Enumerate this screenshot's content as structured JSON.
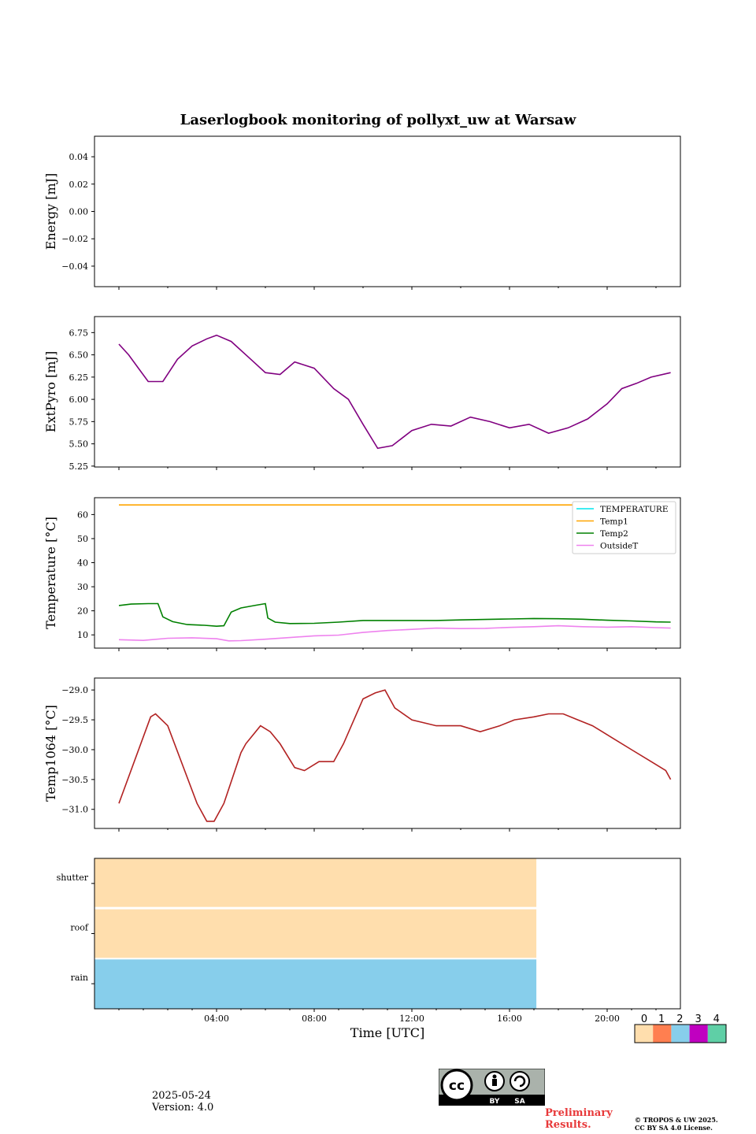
{
  "chart_data": {
    "title": "Laserlogbook monitoring of pollyxt_uw at Warsaw",
    "x_axis": {
      "label": "Time [UTC]",
      "range_hours": [
        -1,
        23
      ],
      "ticks": [
        4,
        8,
        12,
        16,
        20
      ],
      "tick_labels": [
        "04:00",
        "08:00",
        "12:00",
        "16:00",
        "20:00"
      ]
    },
    "panels": [
      {
        "type": "line",
        "ylabel": "Energy [mJ]",
        "ylim": [
          -0.055,
          0.055
        ],
        "yticks": [
          0.04,
          0.02,
          0.0,
          -0.02,
          -0.04
        ],
        "ytick_labels": [
          "0.04",
          "0.02",
          "0.00",
          "−0.02",
          "−0.04"
        ],
        "series": []
      },
      {
        "type": "line",
        "ylabel": "ExtPyro [mJ]",
        "ylim": [
          5.24,
          6.93
        ],
        "yticks": [
          6.75,
          6.5,
          6.25,
          6.0,
          5.75,
          5.5,
          5.25
        ],
        "ytick_labels": [
          "6.75",
          "6.50",
          "6.25",
          "6.00",
          "5.75",
          "5.50",
          "5.25"
        ],
        "series": [
          {
            "color": "#800080",
            "x": [
              0.0,
              0.4,
              0.8,
              1.2,
              1.8,
              2.4,
              3.0,
              3.6,
              4.0,
              4.6,
              5.4,
              6.0,
              6.6,
              7.2,
              8.0,
              8.8,
              9.4,
              10.0,
              10.6,
              11.2,
              12.0,
              12.8,
              13.6,
              14.4,
              15.2,
              16.0,
              16.8,
              17.6,
              18.4,
              19.2,
              20.0,
              20.6,
              21.2,
              21.8,
              22.6
            ],
            "y": [
              6.62,
              6.5,
              6.35,
              6.2,
              6.2,
              6.45,
              6.6,
              6.68,
              6.72,
              6.65,
              6.45,
              6.3,
              6.28,
              6.42,
              6.35,
              6.12,
              6.0,
              5.72,
              5.45,
              5.48,
              5.65,
              5.72,
              5.7,
              5.8,
              5.75,
              5.68,
              5.72,
              5.62,
              5.68,
              5.78,
              5.95,
              6.12,
              6.18,
              6.25,
              6.3
            ]
          }
        ]
      },
      {
        "type": "line",
        "ylabel": "Temperature [°C]",
        "ylim": [
          4.5,
          67
        ],
        "yticks": [
          60,
          50,
          40,
          30,
          20,
          10
        ],
        "ytick_labels": [
          "60",
          "50",
          "40",
          "30",
          "20",
          "10"
        ],
        "legend": {
          "placement": "upper right",
          "entries": [
            "TEMPERATURE",
            "Temp1",
            "Temp2",
            "OutsideT"
          ]
        },
        "series": [
          {
            "name": "TEMPERATURE",
            "color": "#00e5ee",
            "x": [],
            "y": []
          },
          {
            "name": "Temp1",
            "color": "#ffa500",
            "x": [
              0,
              22.6
            ],
            "y": [
              64,
              64
            ]
          },
          {
            "name": "Temp2",
            "color": "#008000",
            "x": [
              0.0,
              0.5,
              1.2,
              1.6,
              1.8,
              2.2,
              2.8,
              3.5,
              4.0,
              4.3,
              4.6,
              5.0,
              5.6,
              6.0,
              6.1,
              6.4,
              7.0,
              8.0,
              9.0,
              10.0,
              11.0,
              12.0,
              13.0,
              14.0,
              15.0,
              16.0,
              17.0,
              18.0,
              19.0,
              20.0,
              21.0,
              22.0,
              22.6
            ],
            "y": [
              22.2,
              22.8,
              23.0,
              23.0,
              17.5,
              15.5,
              14.3,
              14.0,
              13.6,
              13.8,
              19.5,
              21.2,
              22.3,
              23.0,
              17.0,
              15.3,
              14.7,
              14.8,
              15.3,
              16.0,
              16.0,
              16.0,
              16.0,
              16.2,
              16.4,
              16.6,
              16.8,
              16.7,
              16.5,
              16.1,
              15.8,
              15.4,
              15.3
            ]
          },
          {
            "name": "OutsideT",
            "color": "#ee82ee",
            "x": [
              0.0,
              1.0,
              2.0,
              3.0,
              4.0,
              4.5,
              5.0,
              6.0,
              7.0,
              8.0,
              9.0,
              10.0,
              11.0,
              12.0,
              13.0,
              14.0,
              15.0,
              16.0,
              17.0,
              18.0,
              19.0,
              20.0,
              21.0,
              22.0,
              22.6
            ],
            "y": [
              8.0,
              7.7,
              8.6,
              8.8,
              8.4,
              7.5,
              7.6,
              8.2,
              8.9,
              9.6,
              9.9,
              11.0,
              11.8,
              12.3,
              12.8,
              12.6,
              12.7,
              13.1,
              13.4,
              13.8,
              13.4,
              13.2,
              13.4,
              13.0,
              12.8
            ]
          }
        ]
      },
      {
        "type": "line",
        "ylabel": "Temp1064 [°C]",
        "ylim": [
          -31.32,
          -28.8
        ],
        "yticks": [
          -29.0,
          -29.5,
          -30.0,
          -30.5,
          -31.0
        ],
        "ytick_labels": [
          "−29.0",
          "−29.5",
          "−30.0",
          "−30.5",
          "−31.0"
        ],
        "series": [
          {
            "color": "#b22222",
            "x": [
              0.0,
              1.3,
              1.5,
              2.0,
              3.2,
              3.6,
              3.9,
              4.3,
              5.0,
              5.2,
              5.8,
              6.2,
              6.6,
              7.2,
              7.6,
              8.2,
              8.8,
              9.2,
              10.0,
              10.5,
              10.9,
              11.3,
              12.0,
              13.0,
              14.0,
              14.8,
              15.6,
              16.2,
              17.0,
              17.6,
              18.2,
              18.8,
              19.4,
              20.2,
              21.0,
              21.8,
              22.4,
              22.6
            ],
            "y": [
              -30.9,
              -29.45,
              -29.4,
              -29.6,
              -30.9,
              -31.2,
              -31.2,
              -30.9,
              -30.05,
              -29.9,
              -29.6,
              -29.7,
              -29.9,
              -30.3,
              -30.35,
              -30.2,
              -30.2,
              -29.9,
              -29.15,
              -29.05,
              -29.0,
              -29.3,
              -29.5,
              -29.6,
              -29.6,
              -29.7,
              -29.6,
              -29.5,
              -29.45,
              -29.4,
              -29.4,
              -29.5,
              -29.6,
              -29.8,
              -30.0,
              -30.2,
              -30.35,
              -30.5
            ]
          }
        ]
      },
      {
        "type": "heatmap",
        "rows": [
          "shutter",
          "roof",
          "rain"
        ],
        "segments": [
          {
            "row": "shutter",
            "start": -1,
            "end": 17.1,
            "status": 0
          },
          {
            "row": "roof",
            "start": -1,
            "end": 17.1,
            "status": 0
          },
          {
            "row": "rain",
            "start": -1,
            "end": 17.1,
            "status": 2
          }
        ]
      }
    ],
    "status_colorbar": {
      "labels": [
        "0",
        "1",
        "2",
        "3",
        "4"
      ],
      "colors": [
        "#ffdead",
        "#ff7f50",
        "#87ceeb",
        "#c000c0",
        "#5fcfa6"
      ]
    }
  },
  "footer": {
    "date": "2025-05-24",
    "version": "Version: 4.0",
    "preliminary": [
      "Preliminary",
      "Results."
    ],
    "copyright": [
      "© TROPOS & UW 2025.",
      "CC BY SA 4.0 License."
    ],
    "license_badge": [
      "BY",
      "SA"
    ]
  }
}
